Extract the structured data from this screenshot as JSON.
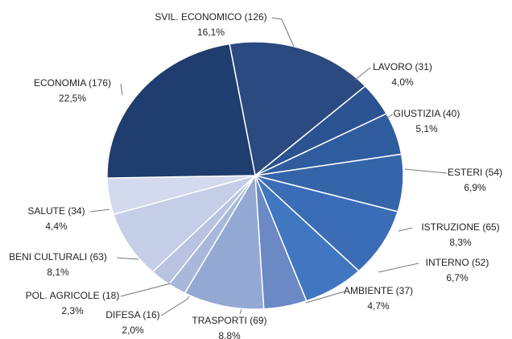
{
  "chart_data": {
    "type": "pie",
    "categories": [
      "SVIL. ECONOMICO (126)",
      "LAVORO (31)",
      "GIUSTIZIA (40)",
      "ESTERI (54)",
      "ISTRUZIONE (65)",
      "INTERNO (52)",
      "AMBIENTE (37)",
      "TRASPORTI (69)",
      "DIFESA (16)",
      "POL. AGRICOLE (18)",
      "BENI CULTURALI (63)",
      "SALUTE (34)",
      "ECONOMIA (176)"
    ],
    "values": [
      16.1,
      4.0,
      5.1,
      6.9,
      8.3,
      6.7,
      4.7,
      8.8,
      2.0,
      2.3,
      8.1,
      4.4,
      22.5
    ],
    "value_labels": [
      "16,1%",
      "4,0%",
      "5,1%",
      "6,9%",
      "8,3%",
      "6,7%",
      "4,7%",
      "8,8%",
      "2,0%",
      "2,3%",
      "8,1%",
      "4,4%",
      "22,5%"
    ],
    "colors": [
      "#2a4a80",
      "#2b5291",
      "#2f5c9f",
      "#3465a9",
      "#3a6db6",
      "#4176c0",
      "#6a89c5",
      "#93a8d3",
      "#a9b7db",
      "#b7c3e1",
      "#c4cee7",
      "#d3daee",
      "#1f3d6e"
    ]
  }
}
